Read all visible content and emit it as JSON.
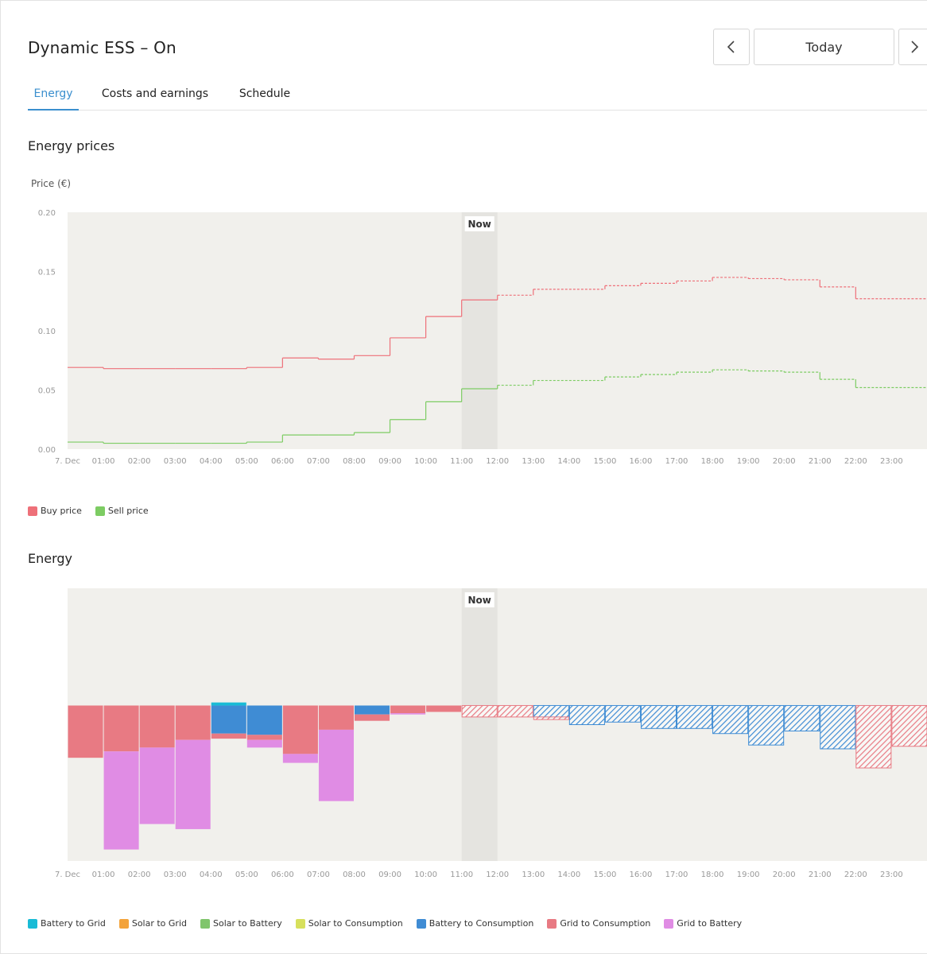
{
  "header": {
    "title": "Dynamic ESS – On",
    "nav": {
      "prev_icon": "chevron-left-icon",
      "today_label": "Today",
      "next_icon": "chevron-right-icon"
    }
  },
  "tabs": [
    {
      "label": "Energy",
      "active": true
    },
    {
      "label": "Costs and earnings",
      "active": false
    },
    {
      "label": "Schedule",
      "active": false
    }
  ],
  "colors": {
    "buy": "#ee7079",
    "sell": "#7dcc63",
    "battery_to_grid": "#19bbd6",
    "solar_to_grid": "#f3a33b",
    "solar_to_battery": "#80c56c",
    "solar_to_consumption": "#d7e05c",
    "battery_to_consumption": "#3f8cd4",
    "grid_to_consumption": "#e87a83",
    "grid_to_battery": "#e08ce4",
    "plot_bg": "#f1f0ec",
    "now_band": "#e5e4e0"
  },
  "prices_section": {
    "title": "Energy prices",
    "ylabel": "Price (€)"
  },
  "energy_section": {
    "title": "Energy"
  },
  "chart_data": [
    {
      "type": "line",
      "title": "Energy prices",
      "ylabel": "Price (€)",
      "xlabel": "",
      "x": [
        "7. Dec",
        "01:00",
        "02:00",
        "03:00",
        "04:00",
        "05:00",
        "06:00",
        "07:00",
        "08:00",
        "09:00",
        "10:00",
        "11:00",
        "12:00",
        "13:00",
        "14:00",
        "15:00",
        "16:00",
        "17:00",
        "18:00",
        "19:00",
        "20:00",
        "21:00",
        "22:00",
        "23:00"
      ],
      "ylim": [
        0,
        0.2
      ],
      "yticks": [
        "0.00",
        "0.05",
        "0.10",
        "0.15",
        "0.20"
      ],
      "now_label": "Now",
      "now_hour": 11,
      "step": true,
      "series": [
        {
          "name": "Buy price",
          "values": [
            0.069,
            0.068,
            0.068,
            0.068,
            0.068,
            0.069,
            0.077,
            0.076,
            0.079,
            0.094,
            0.112,
            0.126,
            0.13,
            0.135,
            0.135,
            0.138,
            0.14,
            0.142,
            0.145,
            0.144,
            0.143,
            0.137,
            0.127,
            0.127
          ]
        },
        {
          "name": "Sell price",
          "values": [
            0.006,
            0.005,
            0.005,
            0.005,
            0.005,
            0.006,
            0.012,
            0.012,
            0.014,
            0.025,
            0.04,
            0.051,
            0.054,
            0.058,
            0.058,
            0.061,
            0.063,
            0.065,
            0.067,
            0.066,
            0.065,
            0.059,
            0.052,
            0.052
          ]
        }
      ],
      "legend": [
        "Buy price",
        "Sell price"
      ],
      "grid": false
    },
    {
      "type": "bar",
      "stacked": true,
      "title": "Energy",
      "x": [
        "7. Dec",
        "01:00",
        "02:00",
        "03:00",
        "04:00",
        "05:00",
        "06:00",
        "07:00",
        "08:00",
        "09:00",
        "10:00",
        "11:00",
        "12:00",
        "13:00",
        "14:00",
        "15:00",
        "16:00",
        "17:00",
        "18:00",
        "19:00",
        "20:00",
        "21:00",
        "22:00",
        "23:00"
      ],
      "now_label": "Now",
      "now_hour": 11,
      "ylim": [
        -6.1,
        4.6
      ],
      "forecast_from_hour": 11,
      "series": [
        {
          "name": "Battery to Grid",
          "values": [
            0,
            0,
            0,
            0,
            0.12,
            0,
            0,
            0,
            0,
            0,
            0,
            0,
            0,
            0,
            0,
            0,
            0,
            0,
            0,
            0,
            0,
            0,
            0,
            0
          ]
        },
        {
          "name": "Solar to Grid",
          "values": [
            0,
            0,
            0,
            0,
            0,
            0,
            0,
            0,
            0,
            0,
            0,
            0,
            0,
            0,
            0,
            0,
            0,
            0,
            0,
            0,
            0,
            0,
            0,
            0
          ]
        },
        {
          "name": "Solar to Battery",
          "values": [
            0,
            0,
            0,
            0,
            0,
            0,
            0,
            0,
            0,
            0,
            0,
            0,
            0,
            0,
            0,
            0,
            0,
            0,
            0,
            0,
            0,
            0,
            0,
            0
          ]
        },
        {
          "name": "Solar to Consumption",
          "values": [
            0,
            0,
            0,
            0,
            0,
            0,
            0,
            0,
            0,
            0,
            0,
            0,
            0,
            0,
            0,
            0,
            0,
            0,
            0,
            0,
            0,
            0,
            0,
            0
          ]
        },
        {
          "name": "Battery to Consumption",
          "values": [
            0,
            0,
            0,
            0,
            -1.1,
            -1.15,
            0,
            0,
            -0.35,
            0,
            0,
            0,
            0,
            -0.45,
            -0.75,
            -0.65,
            -0.9,
            -0.9,
            -1.1,
            -1.55,
            -1.0,
            -1.7,
            0,
            0
          ]
        },
        {
          "name": "Grid to Consumption",
          "values": [
            -2.05,
            -1.8,
            -1.65,
            -1.35,
            -0.2,
            -0.2,
            -1.9,
            -0.95,
            -0.25,
            -0.3,
            -0.25,
            -0.45,
            -0.45,
            -0.1,
            0,
            0,
            0,
            0,
            0,
            0,
            0,
            0,
            -2.45,
            -1.6
          ]
        },
        {
          "name": "Grid to Battery",
          "values": [
            0,
            -3.85,
            -3.0,
            -3.5,
            0,
            -0.3,
            -0.35,
            -2.8,
            0,
            -0.05,
            0,
            0,
            0,
            0,
            0,
            0,
            0,
            0,
            0,
            0,
            0,
            0,
            0,
            0
          ]
        }
      ],
      "legend": [
        "Battery to Grid",
        "Solar to Grid",
        "Solar to Battery",
        "Solar to Consumption",
        "Battery to Consumption",
        "Grid to Consumption",
        "Grid to Battery"
      ],
      "grid": false
    }
  ]
}
